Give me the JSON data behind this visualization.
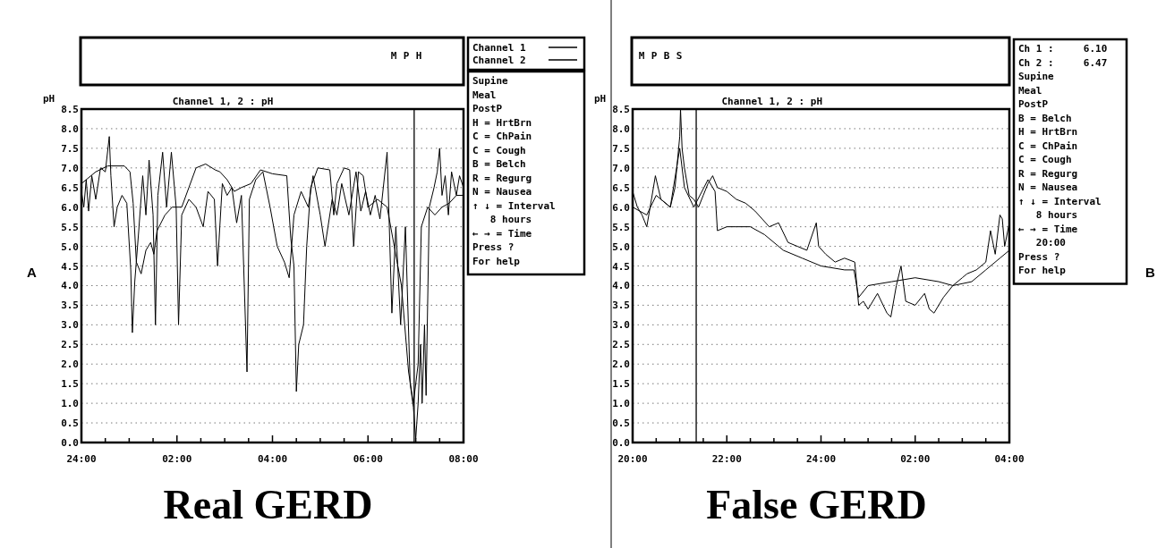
{
  "chart_data": [
    {
      "type": "line",
      "title": "Real GERD",
      "subtitle": "Channel 1, 2 : pH",
      "ylabel": "pH",
      "legend": "right",
      "grid": "y",
      "xlim": [
        "2000-01-02T00:00",
        "2000-01-02T08:00"
      ],
      "xticks": [
        {
          "value": "2000-01-02T00:00",
          "label": "24:00"
        },
        {
          "value": "2000-01-02T00:30",
          "label": null
        },
        {
          "value": "2000-01-02T01:00",
          "label": null
        },
        {
          "value": "2000-01-02T01:30",
          "label": null
        },
        {
          "value": "2000-01-02T02:00",
          "label": "02:00"
        },
        {
          "value": "2000-01-02T02:30",
          "label": null
        },
        {
          "value": "2000-01-02T03:00",
          "label": null
        },
        {
          "value": "2000-01-02T03:30",
          "label": null
        },
        {
          "value": "2000-01-02T04:00",
          "label": "04:00"
        },
        {
          "value": "2000-01-02T04:30",
          "label": null
        },
        {
          "value": "2000-01-02T05:00",
          "label": null
        },
        {
          "value": "2000-01-02T05:30",
          "label": null
        },
        {
          "value": "2000-01-02T06:00",
          "label": "06:00"
        },
        {
          "value": "2000-01-02T06:30",
          "label": null
        },
        {
          "value": "2000-01-02T07:00",
          "label": null
        },
        {
          "value": "2000-01-02T07:30",
          "label": null
        },
        {
          "value": "2000-01-02T08:00",
          "label": "08:00"
        }
      ],
      "ylim": [
        0,
        8.5
      ],
      "yticks": [
        {
          "value": 0,
          "label": "0.0"
        },
        {
          "value": 0.5,
          "label": "0.5"
        },
        {
          "value": 1,
          "label": "1.0"
        },
        {
          "value": 1.5,
          "label": "1.5"
        },
        {
          "value": 2,
          "label": "2.0"
        },
        {
          "value": 2.5,
          "label": "2.5"
        },
        {
          "value": 3,
          "label": "3.0"
        },
        {
          "value": 3.5,
          "label": "3.5"
        },
        {
          "value": 4,
          "label": "4.0"
        },
        {
          "value": 4.5,
          "label": "4.5"
        },
        {
          "value": 5,
          "label": "5.0"
        },
        {
          "value": 5.5,
          "label": "5.5"
        },
        {
          "value": 6,
          "label": "6.0"
        },
        {
          "value": 6.5,
          "label": "6.5"
        },
        {
          "value": 7,
          "label": "7.0"
        },
        {
          "value": 7.5,
          "label": "7.5"
        },
        {
          "value": 8,
          "label": "8.0"
        },
        {
          "value": 8.5,
          "label": "8.5"
        }
      ],
      "series": [
        {
          "name": "Channel 1",
          "color": "#000000",
          "x": [
            "2000-01-02T00:00",
            "2000-01-02T00:03",
            "2000-01-02T00:06",
            "2000-01-02T00:09",
            "2000-01-02T00:13",
            "2000-01-02T00:18",
            "2000-01-02T00:24",
            "2000-01-02T00:30",
            "2000-01-02T00:35",
            "2000-01-02T00:37",
            "2000-01-02T00:41",
            "2000-01-02T00:45",
            "2000-01-02T00:51",
            "2000-01-02T00:57",
            "2000-01-02T01:02",
            "2000-01-02T01:04",
            "2000-01-02T01:07",
            "2000-01-02T01:12",
            "2000-01-02T01:17",
            "2000-01-02T01:21",
            "2000-01-02T01:25",
            "2000-01-02T01:30",
            "2000-01-02T01:33",
            "2000-01-02T01:36",
            "2000-01-02T01:42",
            "2000-01-02T01:47",
            "2000-01-02T01:53",
            "2000-01-02T01:59",
            "2000-01-02T02:02",
            "2000-01-02T02:06",
            "2000-01-02T02:15",
            "2000-01-02T02:24",
            "2000-01-02T02:33",
            "2000-01-02T02:39",
            "2000-01-02T02:47",
            "2000-01-02T02:51",
            "2000-01-02T02:57",
            "2000-01-02T03:03",
            "2000-01-02T03:09",
            "2000-01-02T03:15",
            "2000-01-02T03:21",
            "2000-01-02T03:28",
            "2000-01-02T03:31",
            "2000-01-02T03:39",
            "2000-01-02T03:48",
            "2000-01-02T03:57",
            "2000-01-02T04:06",
            "2000-01-02T04:15",
            "2000-01-02T04:21",
            "2000-01-02T04:27",
            "2000-01-02T04:36",
            "2000-01-02T04:45",
            "2000-01-02T04:51",
            "2000-01-02T05:00",
            "2000-01-02T05:06",
            "2000-01-02T05:15",
            "2000-01-02T05:21",
            "2000-01-02T05:27",
            "2000-01-02T05:36",
            "2000-01-02T05:45",
            "2000-01-02T05:51",
            "2000-01-02T05:57",
            "2000-01-02T06:03",
            "2000-01-02T06:09",
            "2000-01-02T06:15",
            "2000-01-02T06:24",
            "2000-01-02T06:30",
            "2000-01-02T06:35",
            "2000-01-02T06:41",
            "2000-01-02T06:47",
            "2000-01-02T06:53",
            "2000-01-02T06:57",
            "2000-01-02T07:00",
            "2000-01-02T07:03",
            "2000-01-02T07:06",
            "2000-01-02T07:08",
            "2000-01-02T07:11",
            "2000-01-02T07:13",
            "2000-01-02T07:17",
            "2000-01-02T07:23",
            "2000-01-02T07:27",
            "2000-01-02T07:30",
            "2000-01-02T07:33",
            "2000-01-02T07:37",
            "2000-01-02T07:41",
            "2000-01-02T07:45",
            "2000-01-02T07:51",
            "2000-01-02T07:55",
            "2000-01-02T08:00"
          ],
          "values": [
            6.4,
            6,
            6.7,
            5.9,
            6.8,
            6.2,
            7,
            6.9,
            7.8,
            6.8,
            5.5,
            6,
            6.3,
            6.1,
            4.4,
            2.8,
            4.1,
            5.4,
            6.8,
            5.8,
            7.2,
            5.8,
            3,
            6.3,
            7.4,
            6,
            7.4,
            6,
            3,
            5.8,
            6.2,
            6,
            5.5,
            6.4,
            6.2,
            4.5,
            6.6,
            6.3,
            6.5,
            5.6,
            6.3,
            1.8,
            6.2,
            6.7,
            6.9,
            6,
            5,
            4.6,
            4.2,
            5.8,
            6.4,
            6,
            6.8,
            5.8,
            5,
            6.2,
            5.8,
            6.6,
            5.8,
            6.9,
            5.9,
            6.4,
            5.8,
            6.3,
            5.7,
            7.4,
            3.3,
            5.5,
            3,
            5.5,
            1.5,
            0.9,
            0.1,
            1,
            2.5,
            1,
            3,
            1.2,
            6,
            6.5,
            6.9,
            7.5,
            6.3,
            6.8,
            5.8,
            6.9,
            6.3,
            6.8,
            6.5
          ]
        },
        {
          "name": "Channel 2",
          "color": "#000000",
          "x": [
            "2000-01-02T00:00",
            "2000-01-02T00:18",
            "2000-01-02T00:33",
            "2000-01-02T00:54",
            "2000-01-02T01:01",
            "2000-01-02T01:05",
            "2000-01-02T01:09",
            "2000-01-02T01:15",
            "2000-01-02T01:21",
            "2000-01-02T01:27",
            "2000-01-02T01:31",
            "2000-01-02T01:35",
            "2000-01-02T01:45",
            "2000-01-02T01:54",
            "2000-01-02T02:06",
            "2000-01-02T02:15",
            "2000-01-02T02:24",
            "2000-01-02T02:36",
            "2000-01-02T02:48",
            "2000-01-02T02:54",
            "2000-01-02T03:03",
            "2000-01-02T03:12",
            "2000-01-02T03:21",
            "2000-01-02T03:33",
            "2000-01-02T03:45",
            "2000-01-02T04:00",
            "2000-01-02T04:18",
            "2000-01-02T04:23",
            "2000-01-02T04:27",
            "2000-01-02T04:30",
            "2000-01-02T04:33",
            "2000-01-02T04:39",
            "2000-01-02T04:43",
            "2000-01-02T04:48",
            "2000-01-02T04:57",
            "2000-01-02T05:12",
            "2000-01-02T05:17",
            "2000-01-02T05:21",
            "2000-01-02T05:30",
            "2000-01-02T05:37",
            "2000-01-02T05:42",
            "2000-01-02T05:48",
            "2000-01-02T05:54",
            "2000-01-02T06:00",
            "2000-01-02T06:12",
            "2000-01-02T06:24",
            "2000-01-02T06:33",
            "2000-01-02T06:42",
            "2000-01-02T06:51",
            "2000-01-02T06:57",
            "2000-01-02T07:03",
            "2000-01-02T07:07",
            "2000-01-02T07:15",
            "2000-01-02T07:24",
            "2000-01-02T07:33",
            "2000-01-02T07:42",
            "2000-01-02T07:51",
            "2000-01-02T08:00"
          ],
          "values": [
            6.6,
            6.9,
            7.05,
            7.05,
            6.9,
            6.1,
            4.6,
            4.3,
            4.9,
            5.1,
            4.8,
            5.4,
            5.8,
            6,
            6,
            6.5,
            7,
            7.1,
            6.95,
            6.9,
            6.7,
            6.4,
            6.5,
            6.6,
            6.95,
            6.85,
            6.8,
            5.2,
            4.5,
            1.3,
            2.5,
            3,
            5,
            6.5,
            7,
            6.95,
            5.8,
            6.6,
            7,
            6.95,
            5,
            6.9,
            6.8,
            6,
            6.2,
            6,
            5,
            4,
            1.8,
            1,
            2,
            5.5,
            6,
            5.8,
            6,
            6.1,
            6.3,
            6.3
          ]
        }
      ],
      "ref_lines": [
        {
          "axis": "x",
          "value": "2000-01-02T06:58"
        }
      ],
      "annotations": [
        "A",
        "Supine",
        "Meal",
        "PostP",
        "H = HrtBrn",
        "C = ChPain",
        "C = Cough",
        "B = Belch",
        "R = Regurg",
        "N = Nausea",
        "↑ ↓ = Interval",
        "   8 hours",
        "← → = Time",
        "Press ?",
        "For help",
        "M",
        "P",
        "H"
      ]
    },
    {
      "type": "line",
      "title": "False GERD",
      "subtitle": "Channel 1, 2 : pH",
      "ylabel": "pH",
      "grid": "y",
      "xlim": [
        "2000-01-01T20:00",
        "2000-01-02T04:00"
      ],
      "xticks": [
        {
          "value": "2000-01-01T20:00",
          "label": "20:00"
        },
        {
          "value": "2000-01-01T20:30",
          "label": null
        },
        {
          "value": "2000-01-01T21:00",
          "label": null
        },
        {
          "value": "2000-01-01T21:30",
          "label": null
        },
        {
          "value": "2000-01-01T22:00",
          "label": "22:00"
        },
        {
          "value": "2000-01-01T22:30",
          "label": null
        },
        {
          "value": "2000-01-01T23:00",
          "label": null
        },
        {
          "value": "2000-01-01T23:30",
          "label": null
        },
        {
          "value": "2000-01-02T00:00",
          "label": "24:00"
        },
        {
          "value": "2000-01-02T00:30",
          "label": null
        },
        {
          "value": "2000-01-02T01:00",
          "label": null
        },
        {
          "value": "2000-01-02T01:30",
          "label": null
        },
        {
          "value": "2000-01-02T02:00",
          "label": "02:00"
        },
        {
          "value": "2000-01-02T02:30",
          "label": null
        },
        {
          "value": "2000-01-02T03:00",
          "label": null
        },
        {
          "value": "2000-01-02T03:30",
          "label": null
        },
        {
          "value": "2000-01-02T04:00",
          "label": "04:00"
        }
      ],
      "ylim": [
        0,
        8.5
      ],
      "yticks": [
        {
          "value": 0,
          "label": "0.0"
        },
        {
          "value": 0.5,
          "label": "0.5"
        },
        {
          "value": 1,
          "label": "1.0"
        },
        {
          "value": 1.5,
          "label": "1.5"
        },
        {
          "value": 2,
          "label": "2.0"
        },
        {
          "value": 2.5,
          "label": "2.5"
        },
        {
          "value": 3,
          "label": "3.0"
        },
        {
          "value": 3.5,
          "label": "3.5"
        },
        {
          "value": 4,
          "label": "4.0"
        },
        {
          "value": 4.5,
          "label": "4.5"
        },
        {
          "value": 5,
          "label": "5.0"
        },
        {
          "value": 5.5,
          "label": "5.5"
        },
        {
          "value": 6,
          "label": "6.0"
        },
        {
          "value": 6.5,
          "label": "6.5"
        },
        {
          "value": 7,
          "label": "7.0"
        },
        {
          "value": 7.5,
          "label": "7.5"
        },
        {
          "value": 8,
          "label": "8.0"
        },
        {
          "value": 8.5,
          "label": "8.5"
        }
      ],
      "series": [
        {
          "color": "#000000",
          "x": [
            "2000-01-01T20:00",
            "2000-01-01T20:06",
            "2000-01-01T20:12",
            "2000-01-01T20:18",
            "2000-01-01T20:24",
            "2000-01-01T20:29",
            "2000-01-01T20:36",
            "2000-01-01T20:48",
            "2000-01-01T20:54",
            "2000-01-01T21:00",
            "2000-01-01T21:01",
            "2000-01-01T21:03",
            "2000-01-01T21:06",
            "2000-01-01T21:12",
            "2000-01-01T21:18",
            "2000-01-01T21:24",
            "2000-01-01T21:30",
            "2000-01-01T21:36",
            "2000-01-01T21:42",
            "2000-01-01T21:48",
            "2000-01-01T22:00",
            "2000-01-01T22:12",
            "2000-01-01T22:24",
            "2000-01-01T22:36",
            "2000-01-01T22:54",
            "2000-01-01T23:06",
            "2000-01-01T23:18",
            "2000-01-01T23:30",
            "2000-01-01T23:42",
            "2000-01-01T23:54",
            "2000-01-01T23:57",
            "2000-01-02T00:06",
            "2000-01-02T00:18",
            "2000-01-02T00:30",
            "2000-01-02T00:43",
            "2000-01-02T00:48",
            "2000-01-02T00:54",
            "2000-01-02T01:00",
            "2000-01-02T01:12",
            "2000-01-02T01:24",
            "2000-01-02T01:29",
            "2000-01-02T01:36",
            "2000-01-02T01:42",
            "2000-01-02T01:48",
            "2000-01-02T02:00",
            "2000-01-02T02:12",
            "2000-01-02T02:18",
            "2000-01-02T02:24",
            "2000-01-02T02:36",
            "2000-01-02T02:48",
            "2000-01-02T03:00",
            "2000-01-02T03:06",
            "2000-01-02T03:18",
            "2000-01-02T03:30",
            "2000-01-02T03:36",
            "2000-01-02T03:42",
            "2000-01-02T03:48",
            "2000-01-02T03:51",
            "2000-01-02T03:54",
            "2000-01-02T04:00"
          ],
          "values": [
            6.4,
            6,
            5.8,
            5.5,
            6.2,
            6.8,
            6.2,
            6,
            6.5,
            7.8,
            8.5,
            7.5,
            7,
            6.3,
            6.2,
            6,
            6.3,
            6.6,
            6.8,
            6.5,
            6.4,
            6.2,
            6.1,
            5.9,
            5.5,
            5.6,
            5.1,
            5,
            4.9,
            5.6,
            5,
            4.8,
            4.6,
            4.7,
            4.6,
            3.5,
            3.6,
            3.4,
            3.8,
            3.3,
            3.2,
            4,
            4.5,
            3.6,
            3.5,
            3.8,
            3.4,
            3.3,
            3.7,
            4,
            4.2,
            4.3,
            4.4,
            4.6,
            5.4,
            4.8,
            5.8,
            5.7,
            5,
            5.6
          ]
        },
        {
          "color": "#000000",
          "x": [
            "2000-01-01T20:00",
            "2000-01-01T20:18",
            "2000-01-01T20:30",
            "2000-01-01T20:48",
            "2000-01-01T21:00",
            "2000-01-01T21:06",
            "2000-01-01T21:18",
            "2000-01-01T21:36",
            "2000-01-01T21:45",
            "2000-01-01T21:48",
            "2000-01-01T22:00",
            "2000-01-01T22:12",
            "2000-01-01T22:30",
            "2000-01-01T22:48",
            "2000-01-01T23:12",
            "2000-01-01T23:36",
            "2000-01-02T00:00",
            "2000-01-02T00:30",
            "2000-01-02T00:42",
            "2000-01-02T00:48",
            "2000-01-02T01:00",
            "2000-01-02T01:30",
            "2000-01-02T02:00",
            "2000-01-02T02:30",
            "2000-01-02T02:48",
            "2000-01-02T03:12",
            "2000-01-02T03:30",
            "2000-01-02T03:48",
            "2000-01-02T04:00"
          ],
          "values": [
            6,
            5.8,
            6.3,
            6,
            7.5,
            6.5,
            6,
            6.7,
            6.4,
            5.4,
            5.5,
            5.5,
            5.5,
            5.3,
            4.9,
            4.7,
            4.5,
            4.4,
            4.4,
            3.7,
            4,
            4.1,
            4.2,
            4.1,
            4,
            4.1,
            4.4,
            4.7,
            4.9
          ]
        }
      ],
      "ref_lines": [
        {
          "axis": "x",
          "value": "2000-01-01T21:21"
        }
      ],
      "annotations": [
        "B",
        "Ch 1 :     6.10",
        "Ch 2 :     6.47",
        "Supine",
        "Meal",
        "PostP",
        "B = Belch",
        "H = HrtBrn",
        "C = ChPain",
        "C = Cough",
        "R = Regurg",
        "N = Nausea",
        "↑ ↓ = Interval",
        "   8 hours",
        "← → = Time",
        "   20:00",
        "Press ?",
        "For help",
        "M",
        "P",
        "B",
        "S"
      ]
    }
  ]
}
